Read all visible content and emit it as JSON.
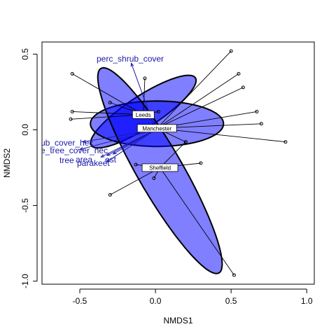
{
  "chart_data": {
    "type": "scatter",
    "xlabel": "NMDS1",
    "ylabel": "NMDS2",
    "xlim": [
      -0.75,
      1.05
    ],
    "ylim": [
      -1.02,
      0.58
    ],
    "x_ticks": [
      -0.5,
      0.0,
      0.5,
      1.0
    ],
    "x_tick_labels": [
      "-0.5",
      "0.0",
      "0.5",
      "1.0"
    ],
    "y_ticks": [
      -1.0,
      -0.5,
      0.0,
      0.5
    ],
    "y_tick_labels": [
      "-1.0",
      "-0.5",
      "0.0",
      "0.5"
    ],
    "grid": false,
    "ellipse_color": "#0000ff",
    "groups": [
      {
        "name": "Leeds",
        "centroid": [
          -0.08,
          0.1
        ],
        "points": [
          [
            -0.55,
            0.37
          ],
          [
            -0.07,
            0.34
          ],
          [
            -0.3,
            0.18
          ],
          [
            -0.55,
            0.12
          ],
          [
            -0.56,
            0.07
          ],
          [
            0.02,
            0.12
          ]
        ],
        "ellipse": {
          "center": [
            -0.08,
            0.12
          ],
          "rx": 0.41,
          "ry": 0.105,
          "angle_deg": 33
        }
      },
      {
        "name": "Manchester",
        "centroid": [
          0.01,
          0.01
        ],
        "points": [
          [
            0.5,
            0.52
          ],
          [
            0.55,
            0.37
          ],
          [
            0.58,
            0.28
          ],
          [
            0.67,
            0.12
          ],
          [
            0.7,
            0.04
          ],
          [
            0.86,
            -0.08
          ],
          [
            0.2,
            -0.08
          ]
        ],
        "ellipse": {
          "center": [
            0.01,
            0.04
          ],
          "rx": 0.44,
          "ry": 0.15,
          "angle_deg": 0
        }
      },
      {
        "name": "Sheffield",
        "centroid": [
          0.03,
          -0.25
        ],
        "points": [
          [
            0.52,
            -0.96
          ],
          [
            -0.3,
            -0.43
          ],
          [
            -0.13,
            -0.23
          ],
          [
            0.3,
            -0.22
          ],
          [
            0.2,
            -0.08
          ],
          [
            -0.01,
            -0.32
          ]
        ],
        "ellipse": {
          "center": [
            0.03,
            -0.27
          ],
          "rx": 0.78,
          "ry": 0.15,
          "angle_deg": -60
        }
      }
    ],
    "vectors": [
      {
        "label": "perc_shrub_cover",
        "end": [
          -0.16,
          0.44
        ]
      },
      {
        "label": "ub_cover_hec",
        "end": [
          -0.48,
          -0.08
        ]
      },
      {
        "label": "e_tree_cover_hec",
        "end": [
          -0.5,
          -0.13
        ]
      },
      {
        "label": "tree",
        "end": [
          -0.36,
          -0.18
        ]
      },
      {
        "label": "area",
        "end": [
          -0.32,
          -0.17
        ]
      },
      {
        "label": "parakeet",
        "end": [
          -0.32,
          -0.21
        ]
      },
      {
        "label": "est",
        "end": [
          -0.28,
          -0.16
        ]
      }
    ]
  }
}
